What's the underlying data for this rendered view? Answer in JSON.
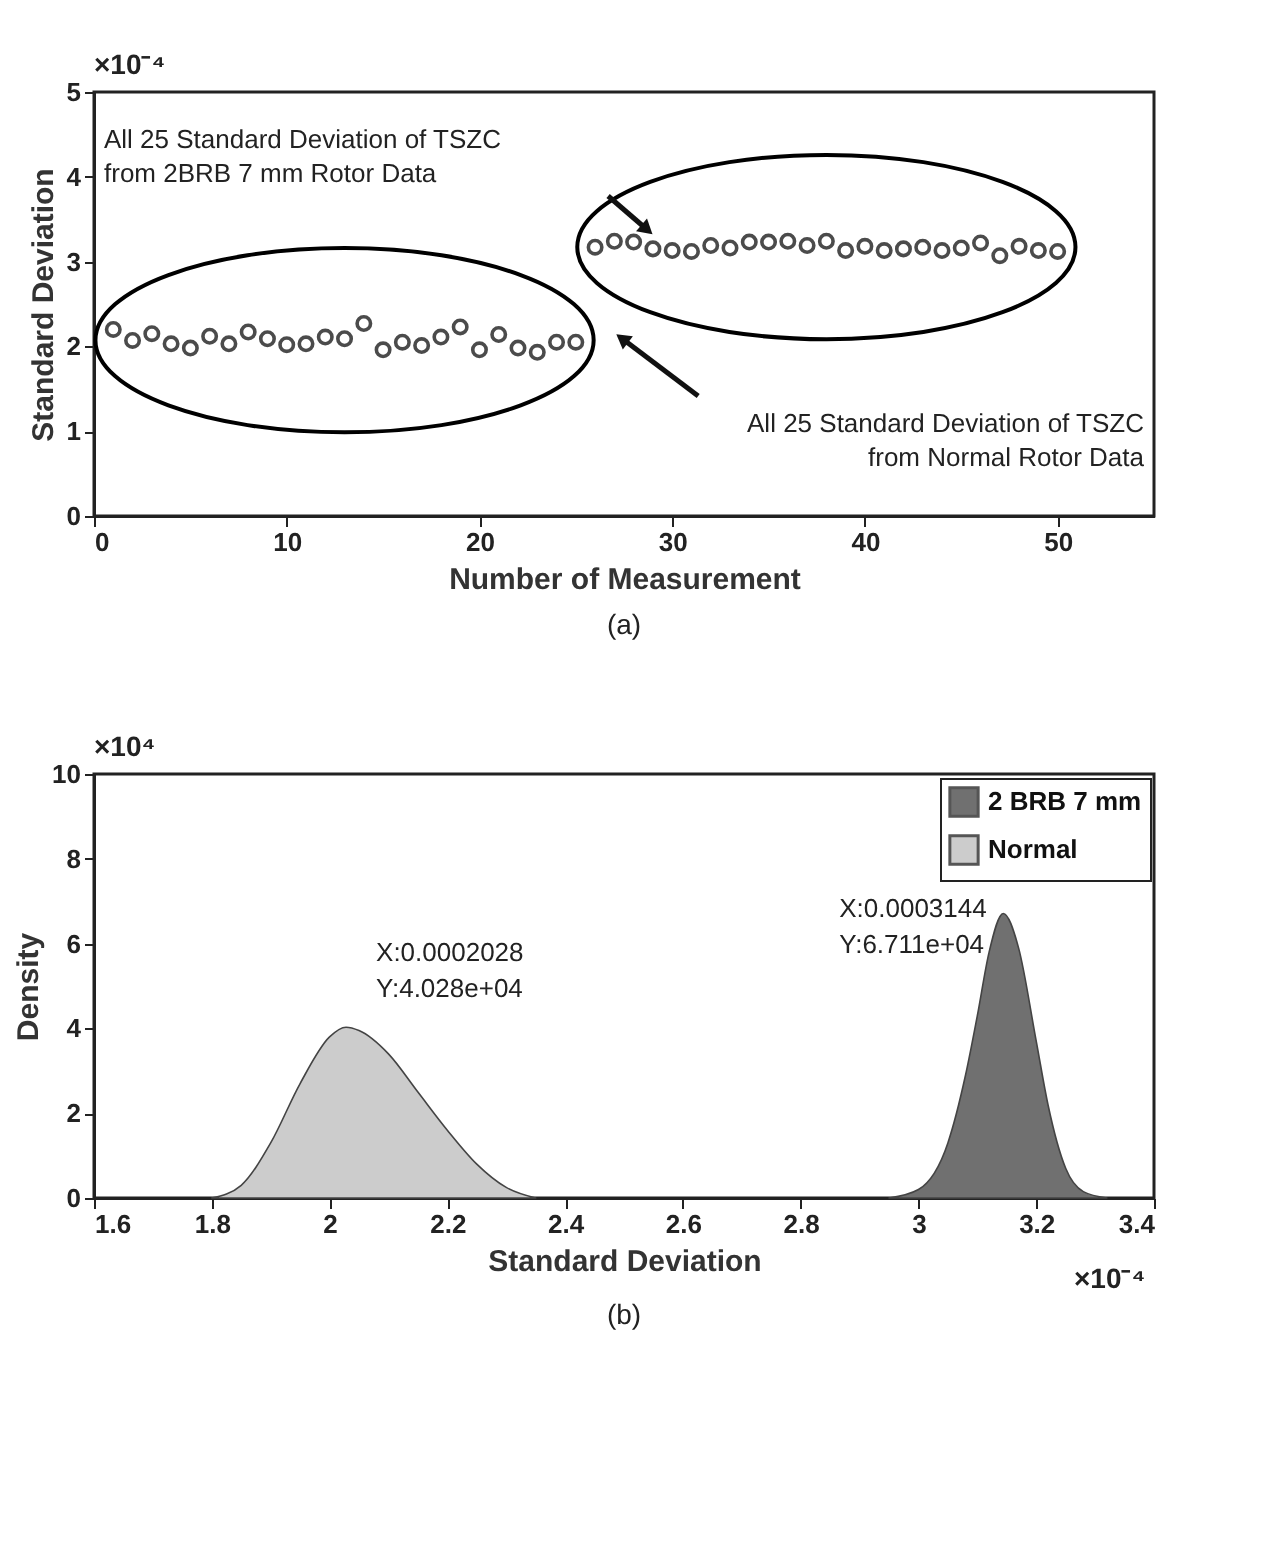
{
  "chart_data": [
    {
      "type": "scatter",
      "xlabel": "Number of Measurement",
      "ylabel": "Standard Deviation",
      "xlim": [
        0,
        55
      ],
      "xticks": [
        0,
        10,
        20,
        30,
        40,
        50
      ],
      "ylim": [
        0,
        5
      ],
      "yticks": [
        0,
        1,
        2,
        3,
        4,
        5
      ],
      "marker": "circle",
      "grid": false,
      "legend": false,
      "series": [
        {
          "color": "#000000",
          "x": [
            1,
            2,
            3,
            4,
            5,
            6,
            7,
            8,
            9,
            10,
            11,
            12,
            13,
            14,
            15,
            16,
            17,
            18,
            19,
            20,
            21,
            22,
            23,
            24,
            25
          ],
          "values": [
            2.2,
            2.07,
            2.15,
            2.03,
            1.98,
            2.12,
            2.03,
            2.17,
            2.09,
            2.02,
            2.03,
            2.11,
            2.09,
            2.27,
            1.96,
            2.05,
            2.01,
            2.11,
            2.23,
            1.96,
            2.14,
            1.98,
            1.93,
            2.05,
            2.05
          ]
        },
        {
          "color": "#000000",
          "x": [
            26,
            27,
            28,
            29,
            30,
            31,
            32,
            33,
            34,
            35,
            36,
            37,
            38,
            39,
            40,
            41,
            42,
            43,
            44,
            45,
            46,
            47,
            48,
            49,
            50
          ],
          "values": [
            3.17,
            3.24,
            3.23,
            3.15,
            3.13,
            3.12,
            3.19,
            3.16,
            3.23,
            3.23,
            3.24,
            3.19,
            3.24,
            3.13,
            3.18,
            3.13,
            3.15,
            3.17,
            3.13,
            3.16,
            3.22,
            3.07,
            3.18,
            3.13,
            3.12
          ]
        }
      ],
      "annotations": [
        "All 25 Standard Deviation of TSZC\nfrom 2BRB 7 mm Rotor Data",
        "All 25 Standard Deviation of TSZC\nfrom Normal Rotor Data",
        "×10⁻⁴",
        "(a)"
      ]
    },
    {
      "type": "area",
      "xlabel": "Standard Deviation",
      "ylabel": "Density",
      "xlim": [
        1.6,
        3.4
      ],
      "xticks": [
        1.6,
        1.8,
        {
          "value": 2,
          "label": "2"
        },
        2.2,
        2.4,
        2.6,
        2.8,
        {
          "value": 3,
          "label": "3"
        },
        3.2,
        3.4
      ],
      "ylim": [
        0,
        10
      ],
      "yticks": [
        0,
        2,
        4,
        6,
        8,
        10
      ],
      "grid": false,
      "legend": "top right",
      "series": [
        {
          "name": "2 BRB 7 mm",
          "color": "#707070",
          "x": [
            2.95,
            3.0,
            3.05,
            3.08,
            3.1,
            3.12,
            3.144,
            3.17,
            3.2,
            3.22,
            3.25,
            3.28,
            3.32
          ],
          "values": [
            0,
            0.2,
            1.3,
            2.9,
            4.3,
            5.8,
            6.711,
            5.9,
            3.7,
            2.2,
            0.7,
            0.15,
            0
          ]
        },
        {
          "name": "Normal",
          "color": "#cccccc",
          "x": [
            1.8,
            1.85,
            1.9,
            1.95,
            2.0,
            2.028,
            2.05,
            2.1,
            2.15,
            2.2,
            2.25,
            2.3,
            2.35
          ],
          "values": [
            0,
            0.3,
            1.3,
            2.7,
            3.8,
            4.028,
            3.95,
            3.4,
            2.5,
            1.6,
            0.8,
            0.25,
            0
          ]
        }
      ],
      "annotations": [
        {
          "text": "X:0.0003144\nY:6.711e+04",
          "x": 3.144,
          "y": 6.711
        },
        {
          "text": "X:0.0002028\nY:4.028e+04",
          "x": 2.028,
          "y": 4.028
        },
        "×10⁴",
        "×10⁻⁴",
        "(b)"
      ]
    }
  ]
}
